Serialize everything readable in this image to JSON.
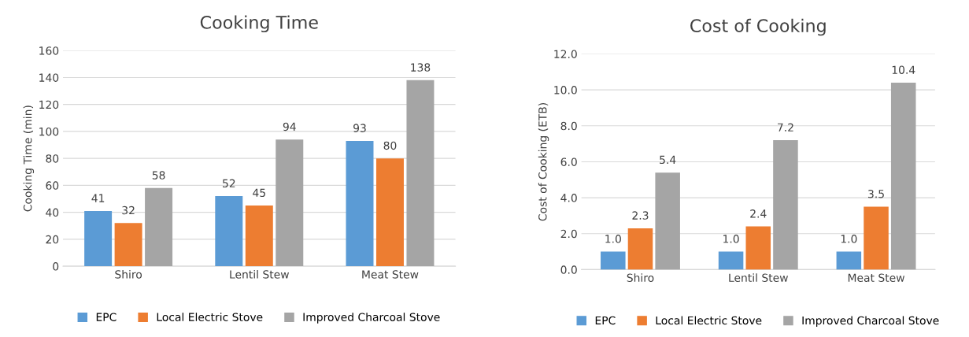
{
  "chart_data": [
    {
      "type": "bar",
      "title": "Cooking Time",
      "ylabel": "Cooking Time (min)",
      "categories": [
        "Shiro",
        "Lentil Stew",
        "Meat Stew"
      ],
      "series": [
        {
          "name": "EPC",
          "color": "#5b9bd5",
          "values": [
            41,
            52,
            93
          ]
        },
        {
          "name": "Local Electric Stove",
          "color": "#ed7d31",
          "values": [
            32,
            45,
            80
          ]
        },
        {
          "name": "Improved Charcoal Stove",
          "color": "#a5a5a5",
          "values": [
            58,
            94,
            138
          ]
        }
      ],
      "ylim": [
        0,
        160
      ],
      "yticks": [
        0,
        20,
        40,
        60,
        80,
        100,
        120,
        140,
        160
      ],
      "grid": "y",
      "legend": "bottom",
      "data_labels": true
    },
    {
      "type": "bar",
      "title": "Cost of Cooking",
      "ylabel": "Cost of Cooking (ETB)",
      "categories": [
        "Shiro",
        "Lentil Stew",
        "Meat Stew"
      ],
      "series": [
        {
          "name": "EPC",
          "color": "#5b9bd5",
          "values": [
            1.0,
            1.0,
            1.0
          ],
          "value_labels": [
            "1.0",
            "1.0",
            "1.0"
          ]
        },
        {
          "name": "Local Electric Stove",
          "color": "#ed7d31",
          "values": [
            2.3,
            2.4,
            3.5
          ],
          "value_labels": [
            "2.3",
            "2.4",
            "3.5"
          ]
        },
        {
          "name": "Improved Charcoal Stove",
          "color": "#a5a5a5",
          "values": [
            5.4,
            7.2,
            10.4
          ],
          "value_labels": [
            "5.4",
            "7.2",
            "10.4"
          ]
        }
      ],
      "ylim": [
        0,
        12
      ],
      "yticks": [
        {
          "value": 0,
          "label": "0.0"
        },
        {
          "value": 2,
          "label": "2.0"
        },
        {
          "value": 4,
          "label": "4.0"
        },
        {
          "value": 6,
          "label": "6.0"
        },
        {
          "value": 8,
          "label": "8.0"
        },
        {
          "value": 10,
          "label": "10.0"
        },
        {
          "value": 12,
          "label": "12.0"
        }
      ],
      "grid": "y",
      "legend": "bottom"
    }
  ]
}
